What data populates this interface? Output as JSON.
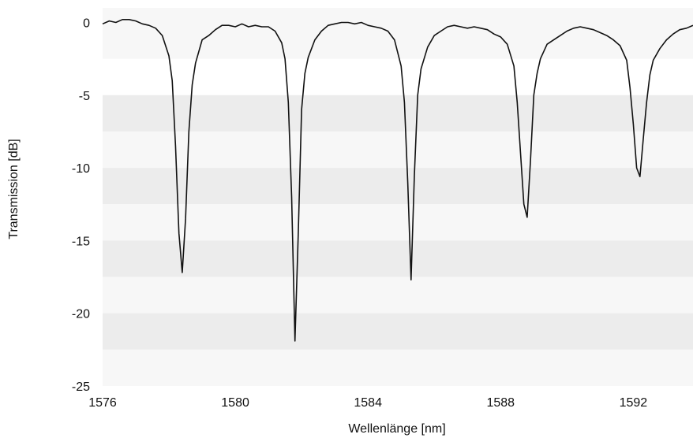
{
  "chart_data": {
    "type": "line",
    "title": "",
    "xlabel": "Wellenlänge [nm]",
    "ylabel": "Transmission [dB]",
    "xlim": [
      1576,
      1593.8
    ],
    "ylim": [
      -25,
      1
    ],
    "x_ticks": [
      1576,
      1580,
      1584,
      1588,
      1592
    ],
    "x_tick_labels": [
      "1576",
      "1580",
      "1584",
      "1588",
      "1592"
    ],
    "y_ticks": [
      0,
      -5,
      -10,
      -15,
      -20,
      -25
    ],
    "y_tick_labels": [
      "0",
      "-5",
      "-10",
      "-15",
      "-20",
      "-25"
    ],
    "grid": "alternating horizontal bands",
    "legend": "none",
    "colors": {
      "line": "#111111",
      "band_dark": "#ececec",
      "band_light": "#f7f7f7"
    },
    "series": [
      {
        "points": [
          [
            1576.0,
            -0.1
          ],
          [
            1576.2,
            0.1
          ],
          [
            1576.4,
            0.0
          ],
          [
            1576.6,
            0.2
          ],
          [
            1576.8,
            0.2
          ],
          [
            1577.0,
            0.1
          ],
          [
            1577.2,
            -0.1
          ],
          [
            1577.4,
            -0.2
          ],
          [
            1577.6,
            -0.4
          ],
          [
            1577.8,
            -0.9
          ],
          [
            1578.0,
            -2.3
          ],
          [
            1578.1,
            -4.0
          ],
          [
            1578.2,
            -8.5
          ],
          [
            1578.3,
            -14.5
          ],
          [
            1578.4,
            -17.2
          ],
          [
            1578.5,
            -13.5
          ],
          [
            1578.6,
            -7.5
          ],
          [
            1578.7,
            -4.3
          ],
          [
            1578.8,
            -2.8
          ],
          [
            1579.0,
            -1.2
          ],
          [
            1579.2,
            -0.9
          ],
          [
            1579.4,
            -0.5
          ],
          [
            1579.6,
            -0.2
          ],
          [
            1579.8,
            -0.2
          ],
          [
            1580.0,
            -0.3
          ],
          [
            1580.2,
            -0.1
          ],
          [
            1580.4,
            -0.3
          ],
          [
            1580.6,
            -0.2
          ],
          [
            1580.8,
            -0.3
          ],
          [
            1581.0,
            -0.3
          ],
          [
            1581.2,
            -0.6
          ],
          [
            1581.4,
            -1.4
          ],
          [
            1581.5,
            -2.5
          ],
          [
            1581.6,
            -5.5
          ],
          [
            1581.7,
            -12.0
          ],
          [
            1581.8,
            -21.9
          ],
          [
            1581.9,
            -14.5
          ],
          [
            1582.0,
            -6.0
          ],
          [
            1582.1,
            -3.5
          ],
          [
            1582.2,
            -2.4
          ],
          [
            1582.4,
            -1.2
          ],
          [
            1582.6,
            -0.6
          ],
          [
            1582.8,
            -0.2
          ],
          [
            1583.0,
            -0.1
          ],
          [
            1583.2,
            0.0
          ],
          [
            1583.4,
            0.0
          ],
          [
            1583.6,
            -0.1
          ],
          [
            1583.8,
            0.0
          ],
          [
            1584.0,
            -0.2
          ],
          [
            1584.2,
            -0.3
          ],
          [
            1584.4,
            -0.4
          ],
          [
            1584.6,
            -0.6
          ],
          [
            1584.8,
            -1.2
          ],
          [
            1585.0,
            -3.0
          ],
          [
            1585.1,
            -5.5
          ],
          [
            1585.2,
            -11.0
          ],
          [
            1585.3,
            -17.7
          ],
          [
            1585.4,
            -10.5
          ],
          [
            1585.5,
            -5.0
          ],
          [
            1585.6,
            -3.2
          ],
          [
            1585.8,
            -1.7
          ],
          [
            1586.0,
            -0.9
          ],
          [
            1586.2,
            -0.6
          ],
          [
            1586.4,
            -0.3
          ],
          [
            1586.6,
            -0.2
          ],
          [
            1586.8,
            -0.3
          ],
          [
            1587.0,
            -0.4
          ],
          [
            1587.2,
            -0.3
          ],
          [
            1587.4,
            -0.4
          ],
          [
            1587.6,
            -0.5
          ],
          [
            1587.8,
            -0.8
          ],
          [
            1588.0,
            -1.0
          ],
          [
            1588.2,
            -1.5
          ],
          [
            1588.4,
            -3.0
          ],
          [
            1588.5,
            -5.5
          ],
          [
            1588.6,
            -9.0
          ],
          [
            1588.7,
            -12.5
          ],
          [
            1588.8,
            -13.4
          ],
          [
            1588.9,
            -9.5
          ],
          [
            1589.0,
            -5.0
          ],
          [
            1589.1,
            -3.5
          ],
          [
            1589.2,
            -2.5
          ],
          [
            1589.4,
            -1.5
          ],
          [
            1589.6,
            -1.2
          ],
          [
            1589.8,
            -0.9
          ],
          [
            1590.0,
            -0.6
          ],
          [
            1590.2,
            -0.4
          ],
          [
            1590.4,
            -0.3
          ],
          [
            1590.6,
            -0.4
          ],
          [
            1590.8,
            -0.5
          ],
          [
            1591.0,
            -0.7
          ],
          [
            1591.2,
            -0.9
          ],
          [
            1591.4,
            -1.2
          ],
          [
            1591.6,
            -1.6
          ],
          [
            1591.8,
            -2.6
          ],
          [
            1591.9,
            -4.5
          ],
          [
            1592.0,
            -7.0
          ],
          [
            1592.1,
            -10.0
          ],
          [
            1592.2,
            -10.6
          ],
          [
            1592.3,
            -8.0
          ],
          [
            1592.4,
            -5.5
          ],
          [
            1592.5,
            -3.6
          ],
          [
            1592.6,
            -2.6
          ],
          [
            1592.8,
            -1.8
          ],
          [
            1593.0,
            -1.2
          ],
          [
            1593.2,
            -0.8
          ],
          [
            1593.4,
            -0.5
          ],
          [
            1593.6,
            -0.4
          ],
          [
            1593.8,
            -0.2
          ]
        ]
      }
    ]
  }
}
